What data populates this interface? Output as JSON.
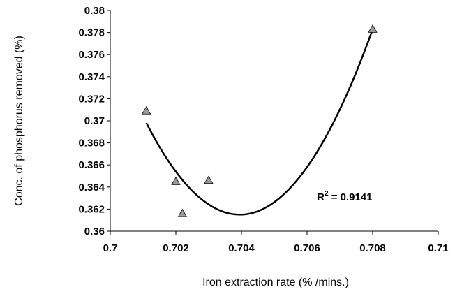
{
  "chart_data": {
    "type": "scatter",
    "title": "",
    "xlabel": "Iron extraction rate (% /mins.)",
    "ylabel": "Conc. of phosphorus removed (%)",
    "xlim": [
      0.7,
      0.71
    ],
    "ylim": [
      0.36,
      0.38
    ],
    "x_ticks": [
      "0.7",
      "0.702",
      "0.704",
      "0.706",
      "0.708",
      "0.71"
    ],
    "y_ticks": [
      "0.36",
      "0.362",
      "0.364",
      "0.366",
      "0.368",
      "0.37",
      "0.372",
      "0.374",
      "0.376",
      "0.378",
      "0.38"
    ],
    "x_tick_values": [
      0.7,
      0.702,
      0.704,
      0.706,
      0.708,
      0.71
    ],
    "y_tick_values": [
      0.36,
      0.362,
      0.364,
      0.366,
      0.368,
      0.37,
      0.372,
      0.374,
      0.376,
      0.378,
      0.38
    ],
    "points": [
      {
        "x": 0.7011,
        "y": 0.3709
      },
      {
        "x": 0.702,
        "y": 0.3645
      },
      {
        "x": 0.7022,
        "y": 0.3616
      },
      {
        "x": 0.703,
        "y": 0.3646
      },
      {
        "x": 0.708,
        "y": 0.3783
      }
    ],
    "trendline": {
      "type": "polynomial-2",
      "x_start": 0.7011,
      "x_end": 0.708,
      "vertex_x": 0.70395,
      "vertex_y": 0.3615,
      "end_y": 0.3783
    },
    "annotation_r_label": "R",
    "annotation_r_sup": "2",
    "annotation_r_value": " = 0.9141",
    "annotation_r_at": {
      "x": 0.7063,
      "y": 0.3628
    },
    "marker_color": "#999999",
    "line_color": "#000000",
    "grid": false,
    "legend": "none"
  }
}
